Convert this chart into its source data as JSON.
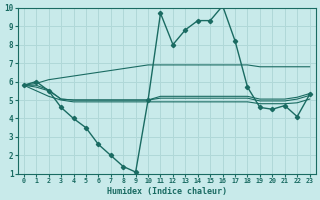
{
  "title": "",
  "xlabel": "Humidex (Indice chaleur)",
  "xlim": [
    -0.5,
    23.5
  ],
  "ylim": [
    1,
    10
  ],
  "xticks": [
    0,
    1,
    2,
    3,
    4,
    5,
    6,
    7,
    8,
    9,
    10,
    11,
    12,
    13,
    14,
    15,
    16,
    17,
    18,
    19,
    20,
    21,
    22,
    23
  ],
  "yticks": [
    1,
    2,
    3,
    4,
    5,
    6,
    7,
    8,
    9,
    10
  ],
  "bg_color": "#c8eaea",
  "line_color": "#1a6b62",
  "grid_color": "#b0d8d8",
  "lines": [
    {
      "y": [
        5.8,
        6.0,
        5.5,
        4.6,
        4.0,
        3.5,
        2.6,
        2.0,
        1.4,
        1.1,
        5.0,
        9.7,
        8.0,
        8.8,
        9.3,
        9.3,
        10.1,
        8.2,
        5.7,
        4.6,
        4.5,
        4.7,
        4.1,
        5.3
      ],
      "marker": true,
      "lw": 1.0
    },
    {
      "y": [
        5.8,
        5.9,
        6.1,
        6.2,
        6.3,
        6.4,
        6.5,
        6.6,
        6.7,
        6.8,
        6.9,
        6.9,
        6.9,
        6.9,
        6.9,
        6.9,
        6.9,
        6.9,
        6.9,
        6.8,
        6.8,
        6.8,
        6.8,
        6.8
      ],
      "marker": false,
      "lw": 0.8
    },
    {
      "y": [
        5.8,
        5.5,
        5.2,
        5.0,
        4.9,
        4.9,
        4.9,
        4.9,
        4.9,
        4.9,
        4.9,
        4.9,
        4.9,
        4.9,
        4.9,
        4.9,
        4.9,
        4.9,
        4.9,
        4.8,
        4.8,
        4.8,
        4.85,
        5.05
      ],
      "marker": false,
      "lw": 0.8
    },
    {
      "y": [
        5.8,
        5.8,
        5.55,
        5.05,
        5.0,
        5.0,
        5.0,
        5.0,
        5.0,
        5.0,
        5.0,
        5.1,
        5.1,
        5.1,
        5.1,
        5.1,
        5.1,
        5.1,
        5.1,
        4.95,
        4.95,
        4.95,
        5.05,
        5.25
      ],
      "marker": false,
      "lw": 0.8
    },
    {
      "y": [
        5.8,
        5.7,
        5.5,
        5.05,
        5.0,
        5.0,
        5.0,
        5.0,
        5.0,
        5.0,
        5.0,
        5.2,
        5.2,
        5.2,
        5.2,
        5.2,
        5.2,
        5.2,
        5.2,
        5.05,
        5.05,
        5.05,
        5.15,
        5.35
      ],
      "marker": false,
      "lw": 0.8
    }
  ]
}
